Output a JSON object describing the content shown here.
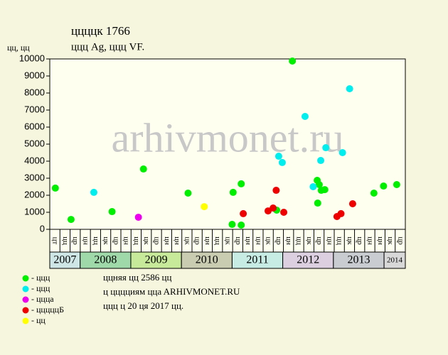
{
  "chart_data": {
    "type": "scatter",
    "title": "ццццк 1766",
    "subtitle": "ццц Ag, ццц VF.",
    "y_label": "цц, цц",
    "watermark": "arhivmonet.ru",
    "xlim": [
      2007.4,
      2014.42
    ],
    "ylim": [
      0,
      10000
    ],
    "yticks": [
      0,
      1000,
      2000,
      3000,
      4000,
      5000,
      6000,
      7000,
      8000,
      9000,
      10000
    ],
    "grid": false,
    "x_periods": [
      "цт",
      "цц",
      "цр",
      "цн",
      "цц",
      "цк",
      "цр",
      "цн",
      "цц",
      "цк",
      "цр",
      "цн",
      "цн",
      "цк",
      "цр",
      "цн",
      "цц",
      "цк",
      "цр",
      "цн",
      "цн",
      "цк",
      "цр",
      "цн",
      "цц",
      "цк",
      "цр",
      "цн",
      "цц",
      "цк",
      "цр",
      "цн",
      "цн",
      "цк",
      "цр"
    ],
    "years": [
      2007,
      2008,
      2009,
      2010,
      2011,
      2012,
      2013,
      2014
    ],
    "year_colors": [
      "#cfe6e6",
      "#9fd9a9",
      "#c6e99a",
      "#c9ccb0",
      "#c6ece4",
      "#dcd0e0",
      "#c9cdd1",
      "#d8d8d8"
    ],
    "series": [
      {
        "name": "- ццц",
        "color": "#00ee00",
        "x": [
          2007.51,
          2007.82,
          2008.63,
          2009.25,
          2010.13,
          2011.0,
          2011.02,
          2011.18,
          2011.18,
          2011.88,
          2012.19,
          2012.68,
          2012.69,
          2012.72,
          2012.76,
          2012.83,
          2013.8,
          2013.99,
          2014.25
        ],
        "values": [
          2420,
          580,
          1040,
          3540,
          2125,
          290,
          2170,
          2670,
          250,
          1125,
          9875,
          2875,
          1540,
          2625,
          2290,
          2330,
          2125,
          2540,
          2625
        ]
      },
      {
        "name": "- ццц",
        "color": "#00eeee",
        "x": [
          2008.27,
          2011.92,
          2011.99,
          2012.44,
          2012.6,
          2012.75,
          2012.85,
          2013.18,
          2013.32
        ],
        "values": [
          2170,
          4290,
          3920,
          6625,
          2500,
          4040,
          4790,
          4500,
          8250
        ]
      },
      {
        "name": "- ццца",
        "color": "#ee00ee",
        "x": [
          2009.15
        ],
        "values": [
          710
        ]
      },
      {
        "name": "- цццццБ",
        "color": "#ee0000",
        "x": [
          2011.22,
          2011.71,
          2011.81,
          2011.87,
          2012.02,
          2013.07,
          2013.15,
          2013.38
        ],
        "values": [
          920,
          1080,
          1250,
          2290,
          1000,
          750,
          920,
          1500
        ]
      },
      {
        "name": "- цц",
        "color": "#ffff00",
        "x": [
          2010.45
        ],
        "values": [
          1330
        ]
      }
    ],
    "notes": [
      "ццняя цц 2586 цц",
      "ц цццциям ццa ARHIVMONET.RU",
      "ццц ц 20 ця 2017 цц."
    ]
  }
}
